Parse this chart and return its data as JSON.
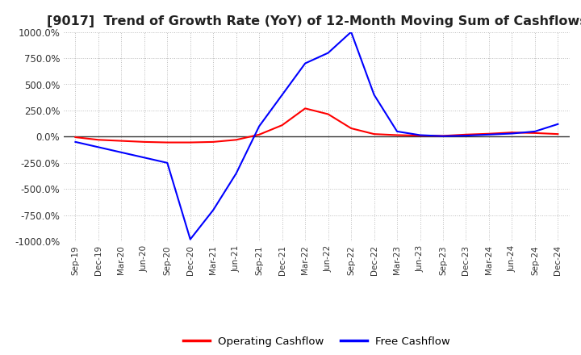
{
  "title": "[9017]  Trend of Growth Rate (YoY) of 12-Month Moving Sum of Cashflows",
  "title_fontsize": 11.5,
  "ylim": [
    -1000,
    1000
  ],
  "yticks": [
    -1000,
    -750,
    -500,
    -250,
    0,
    250,
    500,
    750,
    1000
  ],
  "ytick_labels": [
    "-1000.0%",
    "-750.0%",
    "-500.0%",
    "-250.0%",
    "0.0%",
    "250.0%",
    "500.0%",
    "750.0%",
    "1000.0%"
  ],
  "background_color": "#ffffff",
  "plot_background": "#ffffff",
  "grid_color": "#bbbbbb",
  "legend": [
    "Operating Cashflow",
    "Free Cashflow"
  ],
  "legend_colors": [
    "#ff0000",
    "#0000ff"
  ],
  "x_dates": [
    "Sep-19",
    "Dec-19",
    "Mar-20",
    "Jun-20",
    "Sep-20",
    "Dec-20",
    "Mar-21",
    "Jun-21",
    "Sep-21",
    "Dec-21",
    "Mar-22",
    "Jun-22",
    "Sep-22",
    "Dec-22",
    "Mar-23",
    "Jun-23",
    "Sep-23",
    "Dec-23",
    "Mar-24",
    "Jun-24",
    "Sep-24",
    "Dec-24"
  ],
  "operating_cf": [
    -5,
    -30,
    -40,
    -50,
    -55,
    -55,
    -50,
    -30,
    20,
    110,
    270,
    215,
    80,
    25,
    15,
    10,
    8,
    20,
    28,
    40,
    35,
    25
  ],
  "free_cf": [
    -50,
    -100,
    -150,
    -200,
    -250,
    -980,
    -700,
    -350,
    100,
    400,
    700,
    800,
    1000,
    400,
    50,
    15,
    5,
    10,
    20,
    30,
    50,
    120
  ]
}
